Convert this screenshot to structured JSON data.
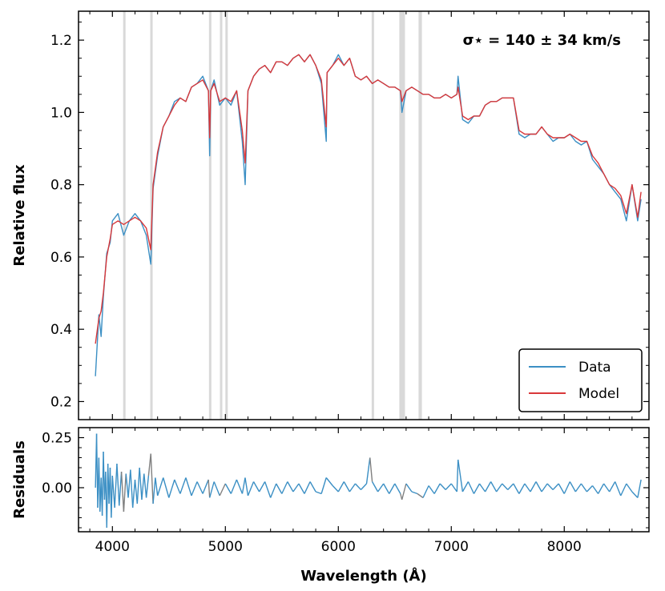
{
  "chart_data": [
    {
      "type": "line",
      "panel": "main",
      "title": "",
      "xlabel": "",
      "ylabel": "Relative flux",
      "xlim": [
        3700,
        8750
      ],
      "ylim": [
        0.15,
        1.28
      ],
      "xticks": [
        4000,
        5000,
        6000,
        7000,
        8000
      ],
      "yticks": [
        0.2,
        0.4,
        0.6,
        0.8,
        1.0,
        1.2
      ],
      "ytick_labels": [
        "0.2",
        "0.4",
        "0.6",
        "0.8",
        "1.0",
        "1.2"
      ],
      "annotation": "σ⋆ = 140 ± 34 km/s",
      "legend_location": "lower-right",
      "masked_regions": [
        [
          4095,
          4110
        ],
        [
          4335,
          4350
        ],
        [
          4855,
          4870
        ],
        [
          4952,
          4967
        ],
        [
          5000,
          5015
        ],
        [
          6295,
          6310
        ],
        [
          6540,
          6590
        ],
        [
          6710,
          6740
        ]
      ],
      "series": [
        {
          "name": "Data",
          "color": "#3b8fc4",
          "x": [
            3850,
            3880,
            3900,
            3920,
            3950,
            3980,
            4000,
            4050,
            4100,
            4150,
            4200,
            4250,
            4300,
            4340,
            4360,
            4400,
            4450,
            4500,
            4550,
            4600,
            4650,
            4700,
            4750,
            4800,
            4850,
            4861,
            4870,
            4900,
            4950,
            5000,
            5050,
            5100,
            5150,
            5175,
            5200,
            5250,
            5300,
            5350,
            5400,
            5450,
            5500,
            5550,
            5600,
            5650,
            5700,
            5750,
            5800,
            5850,
            5893,
            5900,
            5950,
            6000,
            6050,
            6100,
            6150,
            6200,
            6250,
            6300,
            6350,
            6400,
            6450,
            6500,
            6550,
            6563,
            6600,
            6650,
            6700,
            6750,
            6800,
            6850,
            6900,
            6950,
            7000,
            7050,
            7060,
            7100,
            7150,
            7200,
            7250,
            7300,
            7350,
            7400,
            7450,
            7500,
            7550,
            7600,
            7650,
            7700,
            7750,
            7800,
            7850,
            7900,
            7950,
            8000,
            8050,
            8100,
            8150,
            8200,
            8250,
            8300,
            8350,
            8400,
            8450,
            8500,
            8550,
            8600,
            8650,
            8680
          ],
          "y": [
            0.27,
            0.44,
            0.38,
            0.49,
            0.61,
            0.64,
            0.7,
            0.72,
            0.66,
            0.7,
            0.72,
            0.7,
            0.66,
            0.58,
            0.79,
            0.88,
            0.96,
            0.99,
            1.03,
            1.04,
            1.03,
            1.07,
            1.08,
            1.1,
            1.06,
            0.88,
            1.06,
            1.09,
            1.02,
            1.04,
            1.02,
            1.06,
            0.92,
            0.8,
            1.06,
            1.1,
            1.12,
            1.13,
            1.11,
            1.14,
            1.14,
            1.13,
            1.15,
            1.16,
            1.14,
            1.16,
            1.13,
            1.08,
            0.92,
            1.11,
            1.13,
            1.16,
            1.13,
            1.15,
            1.1,
            1.09,
            1.1,
            1.08,
            1.09,
            1.08,
            1.07,
            1.07,
            1.06,
            1.0,
            1.06,
            1.07,
            1.06,
            1.05,
            1.05,
            1.04,
            1.04,
            1.05,
            1.04,
            1.05,
            1.1,
            0.98,
            0.97,
            0.99,
            0.99,
            1.02,
            1.03,
            1.03,
            1.04,
            1.04,
            1.04,
            0.94,
            0.93,
            0.94,
            0.94,
            0.96,
            0.94,
            0.92,
            0.93,
            0.93,
            0.94,
            0.92,
            0.91,
            0.92,
            0.87,
            0.85,
            0.83,
            0.8,
            0.78,
            0.76,
            0.7,
            0.8,
            0.7,
            0.76
          ]
        },
        {
          "name": "Model",
          "color": "#d9383a",
          "x": [
            3850,
            3880,
            3900,
            3920,
            3950,
            3980,
            4000,
            4050,
            4100,
            4150,
            4200,
            4250,
            4300,
            4340,
            4360,
            4400,
            4450,
            4500,
            4550,
            4600,
            4650,
            4700,
            4750,
            4800,
            4850,
            4861,
            4870,
            4900,
            4950,
            5000,
            5050,
            5100,
            5150,
            5175,
            5200,
            5250,
            5300,
            5350,
            5400,
            5450,
            5500,
            5550,
            5600,
            5650,
            5700,
            5750,
            5800,
            5850,
            5893,
            5900,
            5950,
            6000,
            6050,
            6100,
            6150,
            6200,
            6250,
            6300,
            6350,
            6400,
            6450,
            6500,
            6550,
            6563,
            6600,
            6650,
            6700,
            6750,
            6800,
            6850,
            6900,
            6950,
            7000,
            7050,
            7060,
            7100,
            7150,
            7200,
            7250,
            7300,
            7350,
            7400,
            7450,
            7500,
            7550,
            7600,
            7650,
            7700,
            7750,
            7800,
            7850,
            7900,
            7950,
            8000,
            8050,
            8100,
            8150,
            8200,
            8250,
            8300,
            8350,
            8400,
            8450,
            8500,
            8550,
            8600,
            8650,
            8680
          ],
          "y": [
            0.36,
            0.43,
            0.45,
            0.5,
            0.6,
            0.65,
            0.69,
            0.7,
            0.69,
            0.7,
            0.71,
            0.7,
            0.68,
            0.62,
            0.8,
            0.89,
            0.96,
            0.99,
            1.02,
            1.04,
            1.03,
            1.07,
            1.08,
            1.09,
            1.06,
            0.93,
            1.06,
            1.08,
            1.03,
            1.04,
            1.03,
            1.06,
            0.95,
            0.86,
            1.06,
            1.1,
            1.12,
            1.13,
            1.11,
            1.14,
            1.14,
            1.13,
            1.15,
            1.16,
            1.14,
            1.16,
            1.13,
            1.09,
            0.96,
            1.11,
            1.13,
            1.15,
            1.13,
            1.15,
            1.1,
            1.09,
            1.1,
            1.08,
            1.09,
            1.08,
            1.07,
            1.07,
            1.06,
            1.03,
            1.06,
            1.07,
            1.06,
            1.05,
            1.05,
            1.04,
            1.04,
            1.05,
            1.04,
            1.05,
            1.07,
            0.99,
            0.98,
            0.99,
            0.99,
            1.02,
            1.03,
            1.03,
            1.04,
            1.04,
            1.04,
            0.95,
            0.94,
            0.94,
            0.94,
            0.96,
            0.94,
            0.93,
            0.93,
            0.93,
            0.94,
            0.93,
            0.92,
            0.92,
            0.88,
            0.86,
            0.83,
            0.8,
            0.79,
            0.77,
            0.72,
            0.8,
            0.71,
            0.78
          ]
        }
      ]
    },
    {
      "type": "line",
      "panel": "residuals",
      "title": "",
      "xlabel": "Wavelength (Å)",
      "ylabel": "Residuals",
      "xlim": [
        3700,
        8750
      ],
      "ylim": [
        -0.22,
        0.3
      ],
      "xticks": [
        4000,
        5000,
        6000,
        7000,
        8000
      ],
      "xtick_labels": [
        "4000",
        "5000",
        "6000",
        "7000",
        "8000"
      ],
      "yticks": [
        0.0,
        0.25
      ],
      "ytick_labels": [
        "0.00",
        "0.25"
      ],
      "series": [
        {
          "name": "Residuals",
          "color": "#3b8fc4",
          "masked_color": "#808080",
          "x": [
            3850,
            3860,
            3870,
            3880,
            3890,
            3900,
            3910,
            3920,
            3930,
            3940,
            3950,
            3960,
            3970,
            3980,
            3990,
            4000,
            4020,
            4040,
            4060,
            4080,
            4100,
            4120,
            4140,
            4160,
            4180,
            4200,
            4220,
            4240,
            4260,
            4280,
            4300,
            4320,
            4340,
            4360,
            4380,
            4400,
            4450,
            4500,
            4550,
            4600,
            4650,
            4700,
            4750,
            4800,
            4850,
            4861,
            4900,
            4950,
            5000,
            5050,
            5100,
            5150,
            5175,
            5200,
            5250,
            5300,
            5350,
            5400,
            5450,
            5500,
            5550,
            5600,
            5650,
            5700,
            5750,
            5800,
            5850,
            5893,
            5950,
            6000,
            6050,
            6100,
            6150,
            6200,
            6250,
            6280,
            6300,
            6350,
            6400,
            6450,
            6500,
            6550,
            6563,
            6600,
            6650,
            6700,
            6750,
            6800,
            6850,
            6900,
            6950,
            7000,
            7050,
            7060,
            7100,
            7150,
            7200,
            7250,
            7300,
            7350,
            7400,
            7450,
            7500,
            7550,
            7600,
            7650,
            7700,
            7750,
            7800,
            7850,
            7900,
            7950,
            8000,
            8050,
            8100,
            8150,
            8200,
            8250,
            8300,
            8350,
            8400,
            8450,
            8500,
            8550,
            8600,
            8650,
            8680
          ],
          "y": [
            0.0,
            0.27,
            -0.1,
            0.15,
            -0.12,
            0.05,
            -0.14,
            0.18,
            -0.06,
            0.08,
            -0.2,
            0.12,
            -0.08,
            0.1,
            -0.15,
            0.06,
            -0.1,
            0.12,
            -0.09,
            0.08,
            -0.12,
            0.07,
            -0.05,
            0.09,
            -0.1,
            0.04,
            -0.08,
            0.1,
            -0.06,
            0.07,
            -0.05,
            0.06,
            0.17,
            -0.08,
            0.05,
            -0.04,
            0.05,
            -0.05,
            0.04,
            -0.03,
            0.05,
            -0.04,
            0.03,
            -0.03,
            0.04,
            -0.05,
            0.03,
            -0.04,
            0.02,
            -0.03,
            0.04,
            -0.03,
            0.05,
            -0.04,
            0.03,
            -0.02,
            0.03,
            -0.05,
            0.02,
            -0.03,
            0.03,
            -0.02,
            0.02,
            -0.03,
            0.03,
            -0.02,
            -0.03,
            0.05,
            0.01,
            -0.02,
            0.03,
            -0.02,
            0.02,
            -0.01,
            0.02,
            0.15,
            0.03,
            -0.02,
            0.02,
            -0.03,
            0.02,
            -0.03,
            -0.06,
            0.02,
            -0.02,
            -0.03,
            -0.05,
            0.01,
            -0.03,
            0.02,
            -0.01,
            0.02,
            -0.02,
            0.14,
            -0.02,
            0.03,
            -0.03,
            0.02,
            -0.02,
            0.03,
            -0.02,
            0.02,
            -0.01,
            0.02,
            -0.03,
            0.02,
            -0.02,
            0.03,
            -0.02,
            0.02,
            -0.01,
            0.02,
            -0.03,
            0.03,
            -0.02,
            0.02,
            -0.02,
            0.01,
            -0.03,
            0.02,
            -0.02,
            0.03,
            -0.04,
            0.02,
            -0.02,
            -0.05,
            0.04
          ]
        }
      ]
    }
  ],
  "legend": {
    "items": [
      {
        "label": "Data",
        "color": "#3b8fc4"
      },
      {
        "label": "Model",
        "color": "#d9383a"
      }
    ]
  },
  "colors": {
    "data": "#3b8fc4",
    "model": "#d9383a",
    "masked_band": "#d9d9d9",
    "masked_residual": "#808080"
  }
}
